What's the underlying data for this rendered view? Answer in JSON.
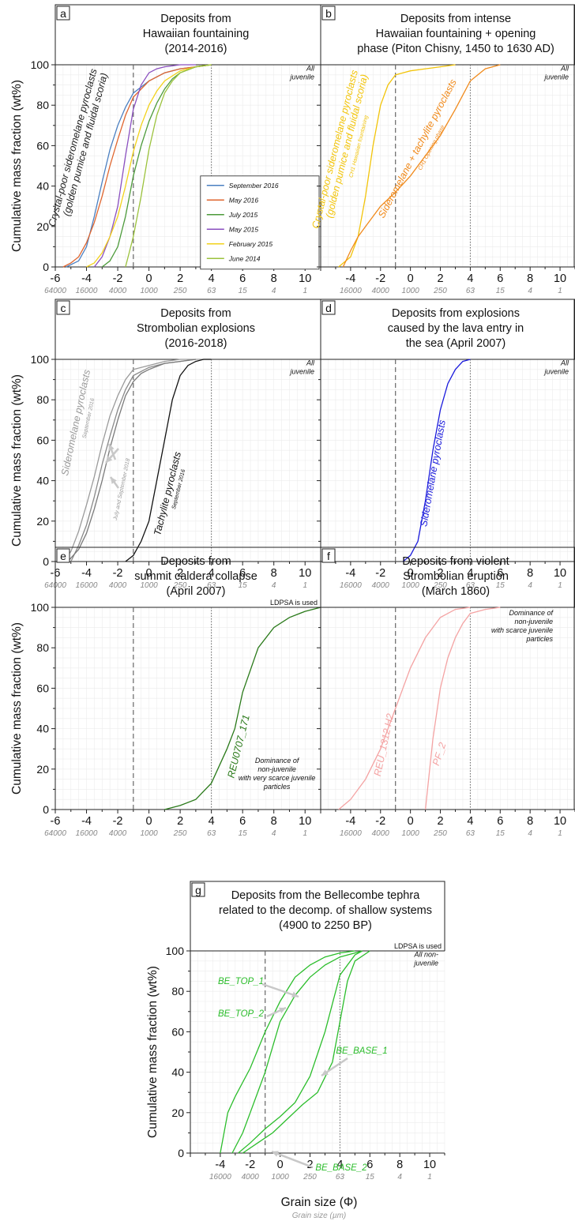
{
  "figure": {
    "y_axis_label": "Cumulative mass fraction (wt%)",
    "x_axis_label": "Grain size (Φ)",
    "x_axis_sublabel": "Grain size (µm)",
    "y_ticks": [
      "0",
      "20",
      "40",
      "60",
      "80",
      "100"
    ],
    "x_ticks": [
      "-6",
      "-4",
      "-2",
      "0",
      "2",
      "4",
      "6",
      "8",
      "10"
    ],
    "um_ticks": [
      "64000",
      "16000",
      "4000",
      "1000",
      "250",
      "63",
      "15",
      "4",
      "1"
    ]
  },
  "chart_data": [
    {
      "id": "a",
      "type": "line",
      "title": "Deposits from\nHawaiian fountaining\n(2014-2016)",
      "xlim": [
        -6,
        11
      ],
      "ylim": [
        0,
        100
      ],
      "note": "All\njuvenile",
      "legend_position": "lower-right",
      "annotations": [
        {
          "text": "Crystal-poor sideromelane pyroclasts\n(golden pumice and fluidal scoria)",
          "color": "#222222"
        }
      ],
      "series": [
        {
          "name": "September 2016",
          "color": "#4a7fc1",
          "x": [
            -5.3,
            -4.5,
            -4,
            -3.5,
            -3,
            -2.5,
            -2,
            -1.5,
            -1,
            0,
            1,
            2,
            3,
            4
          ],
          "y": [
            0,
            3,
            10,
            25,
            42,
            58,
            70,
            79,
            86,
            92,
            96,
            98,
            99,
            100
          ]
        },
        {
          "name": "May 2016",
          "color": "#e0662f",
          "x": [
            -5.5,
            -5,
            -4.5,
            -4,
            -3.5,
            -3,
            -2.5,
            -2,
            -1.5,
            -1,
            0,
            1,
            2,
            3,
            4
          ],
          "y": [
            0,
            2,
            5,
            12,
            22,
            35,
            50,
            63,
            75,
            84,
            92,
            96,
            98,
            99,
            100
          ]
        },
        {
          "name": "July 2015",
          "color": "#4c9a3a",
          "x": [
            -3,
            -2.5,
            -2,
            -1.5,
            -1,
            -0.5,
            0,
            0.5,
            1,
            1.5,
            2,
            3,
            4
          ],
          "y": [
            0,
            3,
            10,
            25,
            45,
            60,
            72,
            81,
            88,
            93,
            96,
            99,
            100
          ]
        },
        {
          "name": "May 2015",
          "color": "#8a4fbf",
          "x": [
            -3.5,
            -3,
            -2.5,
            -2,
            -1.5,
            -1,
            -0.5,
            0,
            0.5,
            1,
            2,
            3
          ],
          "y": [
            0,
            5,
            15,
            30,
            55,
            78,
            90,
            96,
            98,
            99,
            100,
            100
          ]
        },
        {
          "name": "February 2015",
          "color": "#f2d21b",
          "x": [
            -4,
            -3.5,
            -3,
            -2.5,
            -2,
            -1.5,
            -1,
            -0.5,
            0,
            0.5,
            1,
            2,
            3,
            4
          ],
          "y": [
            0,
            2,
            7,
            15,
            25,
            40,
            57,
            70,
            80,
            87,
            92,
            97,
            99,
            100
          ]
        },
        {
          "name": "June 2014",
          "color": "#9bc23c",
          "x": [
            -1.5,
            -1,
            -0.5,
            0,
            0.5,
            1,
            1.5,
            2,
            3,
            4
          ],
          "y": [
            0,
            15,
            35,
            58,
            75,
            86,
            92,
            96,
            99,
            100
          ]
        }
      ]
    },
    {
      "id": "b",
      "type": "line",
      "title": "Deposits from intense\nHawaiian fountaining + opening\nphase (Piton Chisny, 1450 to 1630 AD)",
      "xlim": [
        -6,
        11
      ],
      "ylim": [
        0,
        100
      ],
      "note": "All\njuvenile",
      "annotations": [
        {
          "text": "Crystal-poor sideromelane pyroclasts\n(golden pumice and fluidal scoria)",
          "subtext": "CH1 Hawaiian fountaining",
          "color": "#f2c40a"
        },
        {
          "text": "Sideromelane + tachylite pyroclasts",
          "subtext": "CH1 Opening phase",
          "color": "#f08a1c"
        }
      ],
      "series": [
        {
          "name": "",
          "color": "#f2c40a",
          "x": [
            -4.8,
            -4,
            -3.5,
            -3,
            -2.5,
            -2,
            -1.5,
            -1,
            -0.5,
            0,
            1,
            2,
            3
          ],
          "y": [
            0,
            5,
            15,
            35,
            60,
            80,
            90,
            95,
            96,
            97,
            98,
            99,
            100
          ]
        },
        {
          "name": "",
          "color": "#f08a1c",
          "x": [
            -4.5,
            -4,
            -3.5,
            -3,
            -2.5,
            -2,
            -1,
            0,
            1,
            2,
            3,
            4,
            5,
            6
          ],
          "y": [
            0,
            8,
            15,
            20,
            25,
            30,
            37,
            45,
            55,
            65,
            78,
            92,
            98,
            100
          ]
        }
      ]
    },
    {
      "id": "c",
      "type": "line",
      "title": "Deposits from\nStrombolian explosions\n(2016-2018)",
      "xlim": [
        -6,
        11
      ],
      "ylim": [
        0,
        100
      ],
      "note": "All\njuvenile",
      "annotations": [
        {
          "text": "Sideromelane pyroclasts",
          "subtext": "September 2016",
          "color": "#9a9a9a"
        },
        {
          "text": "July and September 2018",
          "color": "#9a9a9a"
        },
        {
          "text": "Tachylite pyroclasts",
          "subtext": "September 2016",
          "color": "#111111"
        }
      ],
      "series": [
        {
          "name": "",
          "color": "#9a9a9a",
          "x": [
            -5.5,
            -5,
            -4.5,
            -4,
            -3.5,
            -3,
            -2.5,
            -2,
            -1.5,
            -1,
            0,
            1,
            2,
            3,
            4
          ],
          "y": [
            0,
            5,
            15,
            28,
            42,
            58,
            72,
            82,
            90,
            95,
            97,
            99,
            100,
            100,
            100
          ]
        },
        {
          "name": "",
          "color": "#8a8a8a",
          "x": [
            -5,
            -4.5,
            -4,
            -3.5,
            -3,
            -2.5,
            -2,
            -1.5,
            -1,
            0,
            1,
            2,
            3
          ],
          "y": [
            0,
            8,
            18,
            32,
            48,
            62,
            75,
            85,
            92,
            96,
            98,
            99,
            100
          ]
        },
        {
          "name": "",
          "color": "#7a7a7a",
          "x": [
            -5.2,
            -4.5,
            -4,
            -3.5,
            -3,
            -2.5,
            -2,
            -1.5,
            -1,
            -0.5,
            0,
            1,
            2,
            3
          ],
          "y": [
            0,
            6,
            14,
            26,
            40,
            56,
            70,
            82,
            89,
            93,
            95,
            98,
            99,
            100
          ]
        },
        {
          "name": "",
          "color": "#111111",
          "x": [
            -1.5,
            -1,
            -0.5,
            0,
            0.5,
            1,
            1.5,
            2,
            2.5,
            3,
            3.5,
            4
          ],
          "y": [
            0,
            3,
            10,
            20,
            40,
            60,
            80,
            92,
            97,
            99,
            100,
            100
          ]
        }
      ]
    },
    {
      "id": "d",
      "type": "line",
      "title": "Deposits from explosions\ncaused by the lava entry in\nthe sea (April 2007)",
      "xlim": [
        -6,
        11
      ],
      "ylim": [
        0,
        100
      ],
      "note": "All\njuvenile",
      "annotations": [
        {
          "text": "Sideromelane pyroclasts",
          "color": "#1a1adc"
        }
      ],
      "series": [
        {
          "name": "",
          "color": "#1a1adc",
          "x": [
            -0.5,
            0,
            0.5,
            1,
            1.5,
            2,
            2.5,
            3,
            3.5,
            4
          ],
          "y": [
            0,
            3,
            10,
            30,
            55,
            75,
            88,
            95,
            99,
            100
          ]
        }
      ]
    },
    {
      "id": "e",
      "type": "line",
      "title": "Deposits from\nsummit caldera collapse\n(April 2007)",
      "xlim": [
        -6,
        11
      ],
      "ylim": [
        0,
        100
      ],
      "note_top": "LDPSA is used",
      "note": "Dominance of\nnon-juvenile\nwith very scarce juvenile\nparticles",
      "annotations": [
        {
          "text": "REU0707_171",
          "color": "#2a7a1a"
        }
      ],
      "series": [
        {
          "name": "",
          "color": "#2a7a1a",
          "x": [
            1,
            2,
            3,
            4,
            5,
            5.5,
            6,
            7,
            8,
            9,
            10,
            11
          ],
          "y": [
            0,
            2,
            5,
            13,
            30,
            40,
            58,
            80,
            90,
            95,
            98,
            100
          ]
        }
      ]
    },
    {
      "id": "f",
      "type": "line",
      "title": "Deposits from violent\nStrombolian eruption\n(March 1860)",
      "xlim": [
        -6,
        11
      ],
      "ylim": [
        0,
        100
      ],
      "note": "Dominance of\nnon-juvenile\nwith scarce juvenile\nparticles",
      "annotations": [
        {
          "text": "REU_1312 H2",
          "color": "#f4a3a3"
        },
        {
          "text": "PF_2",
          "color": "#f4a3a3"
        }
      ],
      "series": [
        {
          "name": "",
          "color": "#f4a3a3",
          "x": [
            -4.8,
            -4,
            -3,
            -2,
            -1,
            0,
            1,
            2,
            3,
            4
          ],
          "y": [
            0,
            5,
            15,
            30,
            50,
            70,
            85,
            95,
            99,
            100
          ]
        },
        {
          "name": "",
          "color": "#f4a3a3",
          "x": [
            1,
            1.5,
            2,
            2.5,
            3,
            3.5,
            4,
            5,
            6
          ],
          "y": [
            0,
            35,
            60,
            75,
            85,
            92,
            97,
            99,
            100
          ]
        }
      ]
    },
    {
      "id": "g",
      "type": "line",
      "title": "Deposits from the Bellecombe tephra\nrelated to the decomp. of shallow systems\n(4900 to 2250 BP)",
      "xlim": [
        -6,
        11
      ],
      "ylim": [
        0,
        100
      ],
      "note_top": "LDPSA is used",
      "note": "All non-\njuvenile",
      "annotations": [
        {
          "text": "BE_TOP_1",
          "color": "#2bbd2b"
        },
        {
          "text": "BE_TOP_2",
          "color": "#2bbd2b"
        },
        {
          "text": "BE_BASE_1",
          "color": "#2bbd2b"
        },
        {
          "text": "BE_BASE_2",
          "color": "#2bbd2b"
        }
      ],
      "series": [
        {
          "name": "BE_TOP_1",
          "color": "#2bbd2b",
          "x": [
            -4,
            -3.5,
            -3,
            -2,
            -1,
            0,
            1,
            2,
            3,
            4,
            5
          ],
          "y": [
            0,
            20,
            28,
            42,
            60,
            75,
            87,
            93,
            97,
            99,
            100
          ]
        },
        {
          "name": "BE_TOP_2",
          "color": "#2bbd2b",
          "x": [
            -3.2,
            -2.5,
            -2,
            -1,
            0,
            1,
            2,
            3,
            4,
            5,
            5.5
          ],
          "y": [
            0,
            10,
            20,
            40,
            65,
            78,
            87,
            93,
            97,
            99,
            100
          ]
        },
        {
          "name": "BE_BASE_1",
          "color": "#2bbd2b",
          "x": [
            -2.8,
            -2,
            -1,
            0,
            1,
            2,
            3,
            4,
            5,
            5.5
          ],
          "y": [
            0,
            5,
            12,
            18,
            25,
            38,
            60,
            88,
            98,
            100
          ]
        },
        {
          "name": "BE_BASE_2",
          "color": "#2bbd2b",
          "x": [
            -2.5,
            -1.5,
            -0.5,
            0.5,
            1.5,
            2.5,
            3.5,
            4,
            4.5,
            5,
            6
          ],
          "y": [
            0,
            5,
            10,
            17,
            24,
            30,
            45,
            65,
            85,
            95,
            100
          ]
        }
      ]
    }
  ]
}
